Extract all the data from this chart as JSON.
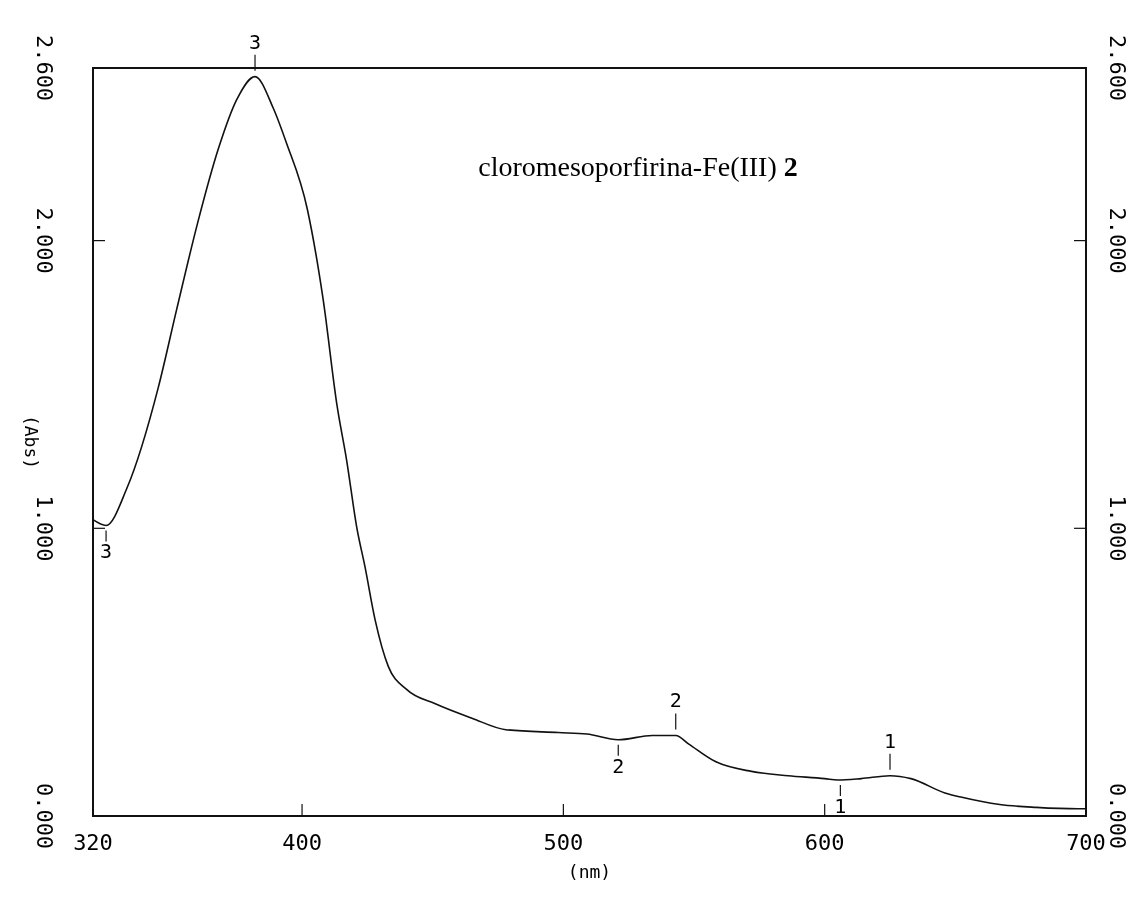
{
  "chart_data": {
    "type": "line",
    "title": "cloromesoporfirina-Fe(III) 2",
    "xlabel": "(nm)",
    "ylabel": "(Abs)",
    "x": [
      320,
      325,
      333,
      345,
      352,
      360,
      368,
      375,
      382,
      389,
      394,
      402,
      408,
      413.5,
      417,
      421,
      424,
      428,
      433,
      440,
      451,
      465,
      478,
      498,
      509,
      521,
      534,
      543,
      548,
      558,
      572,
      586,
      600,
      605,
      614,
      625,
      633,
      646,
      652.5,
      667,
      681,
      697,
      700
    ],
    "series": [
      {
        "color": "#111111",
        "values": [
          1.03,
          1.01,
          1.14,
          1.49,
          1.76,
          2.06,
          2.32,
          2.49,
          2.57,
          2.46,
          2.34,
          2.11,
          1.8,
          1.42,
          1.24,
          1.0,
          0.87,
          0.68,
          0.52,
          0.44,
          0.39,
          0.34,
          0.3,
          0.29,
          0.285,
          0.265,
          0.28,
          0.28,
          0.25,
          0.19,
          0.155,
          0.14,
          0.13,
          0.125,
          0.13,
          0.14,
          0.13,
          0.08,
          0.065,
          0.04,
          0.03,
          0.025,
          0.025
        ]
      }
    ],
    "xlim": [
      320,
      700
    ],
    "xticks": [
      320,
      400,
      500,
      600,
      700
    ],
    "ylim": [
      0,
      2.6
    ],
    "yticks": [
      {
        "value": 0,
        "label": "0.000"
      },
      {
        "value": 1,
        "label": "1.000"
      },
      {
        "value": 2,
        "label": "2.000"
      },
      {
        "value": 2.6,
        "label": "2.600"
      }
    ],
    "y2lim": [
      0,
      2.6
    ],
    "y2ticks": [
      {
        "value": 0,
        "label": "0.000"
      },
      {
        "value": 1,
        "label": "1.000"
      },
      {
        "value": 2,
        "label": "2.000"
      },
      {
        "value": 2.6,
        "label": "2.600"
      }
    ],
    "annotations": [
      {
        "text": "3",
        "x": 382,
        "y": 2.57
      },
      {
        "text": "3",
        "x": 325,
        "y": 1.01
      },
      {
        "text": "2",
        "x": 543,
        "y": 0.28
      },
      {
        "text": "2",
        "x": 521,
        "y": 0.265
      },
      {
        "text": "1",
        "x": 625,
        "y": 0.14
      },
      {
        "text": "1",
        "x": 606,
        "y": 0.125
      }
    ],
    "grid": false
  }
}
